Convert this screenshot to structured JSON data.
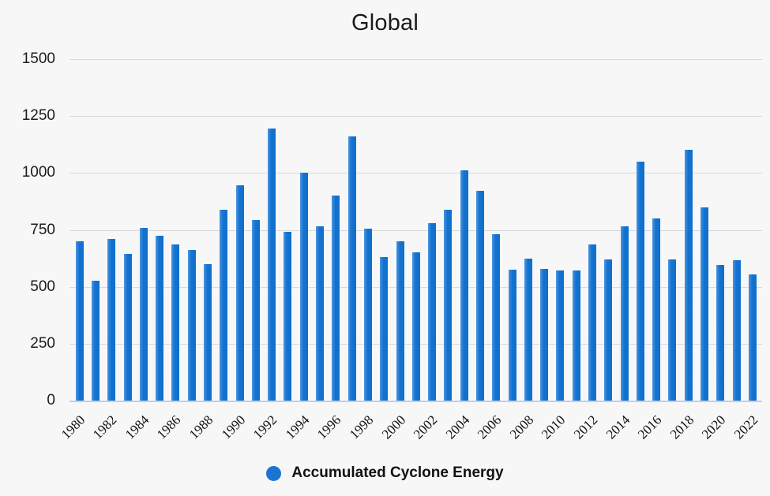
{
  "title": "Global",
  "legend": {
    "label": "Accumulated Cyclone Energy",
    "marker_color": "#1a75d2"
  },
  "colors": {
    "bar": "#1272cf",
    "grid": "#d9d9dc",
    "axis_line": "#c5cde9",
    "background": "#f7f7f8"
  },
  "chart_data": {
    "type": "bar",
    "title": "Global",
    "xlabel": "",
    "ylabel": "",
    "ylim": [
      0,
      1500
    ],
    "yticks": [
      0,
      250,
      500,
      750,
      1000,
      1250,
      1500
    ],
    "grid": true,
    "legend_position": "bottom",
    "xtick_label_step": 2,
    "categories": [
      1980,
      1981,
      1982,
      1983,
      1984,
      1985,
      1986,
      1987,
      1988,
      1989,
      1990,
      1991,
      1992,
      1993,
      1994,
      1995,
      1996,
      1997,
      1998,
      1999,
      2000,
      2001,
      2002,
      2003,
      2004,
      2005,
      2006,
      2007,
      2008,
      2009,
      2010,
      2011,
      2012,
      2013,
      2014,
      2015,
      2016,
      2017,
      2018,
      2019,
      2020,
      2021,
      2022
    ],
    "series": [
      {
        "name": "Accumulated Cyclone Energy",
        "values": [
          700,
          525,
          710,
          645,
          760,
          725,
          685,
          660,
          600,
          840,
          945,
          795,
          1195,
          740,
          1000,
          765,
          900,
          1160,
          755,
          630,
          700,
          650,
          780,
          840,
          1010,
          920,
          730,
          575,
          625,
          580,
          570,
          570,
          685,
          620,
          765,
          1050,
          800,
          620,
          1100,
          850,
          595,
          615,
          555
        ]
      }
    ]
  }
}
